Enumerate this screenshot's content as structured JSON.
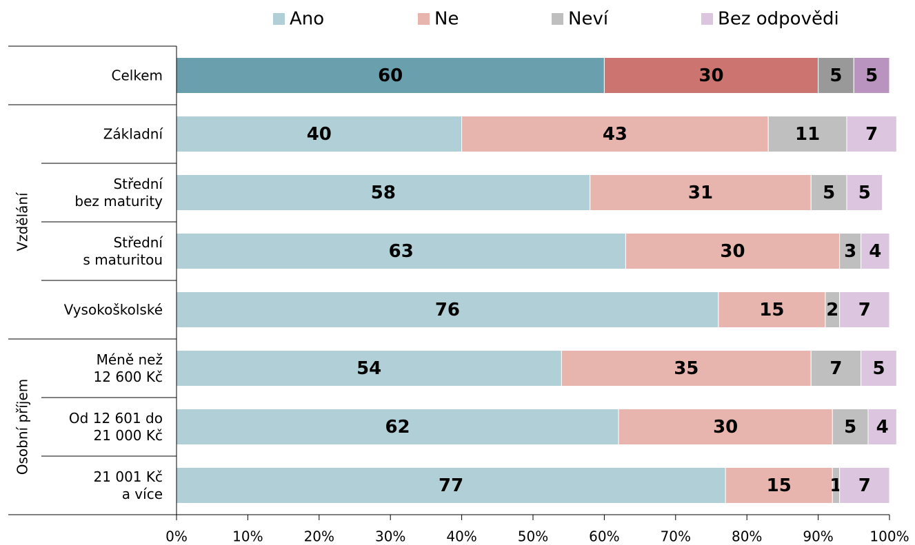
{
  "chart_data": {
    "type": "stacked_barh",
    "categories": [
      "Celkem",
      "Základní",
      "Střední\nbez maturity",
      "Střední\ns maturitou",
      "Vysokoškolské",
      "Méně než\n12 600 Kč",
      "Od 12 601 do\n21 000 Kč",
      "21 001 Kč\na více"
    ],
    "groups": [
      {
        "label": "Vzdělání",
        "start": 1,
        "end": 4
      },
      {
        "label": "Osobní příjem",
        "start": 5,
        "end": 7
      }
    ],
    "series": [
      {
        "name": "Ano",
        "color": "#b0cfd6",
        "colors": [
          "#6a9fad",
          "#b0cfd6",
          "#b0cfd6",
          "#b0cfd6",
          "#b0cfd6",
          "#b0cfd6",
          "#b0cfd6",
          "#b0cfd6"
        ],
        "values": [
          60,
          40,
          58,
          63,
          76,
          54,
          62,
          77
        ]
      },
      {
        "name": "Ne",
        "color": "#e8b5ae",
        "colors": [
          "#cc7470",
          "#e8b5ae",
          "#e8b5ae",
          "#e8b5ae",
          "#e8b5ae",
          "#e8b5ae",
          "#e8b5ae",
          "#e8b5ae"
        ],
        "values": [
          30,
          43,
          31,
          30,
          15,
          35,
          30,
          15
        ]
      },
      {
        "name": "Neví",
        "color": "#bfbfbf",
        "colors": [
          "#999999",
          "#bfbfbf",
          "#bfbfbf",
          "#bfbfbf",
          "#bfbfbf",
          "#bfbfbf",
          "#bfbfbf",
          "#bfbfbf"
        ],
        "values": [
          5,
          11,
          5,
          3,
          2,
          7,
          5,
          1
        ]
      },
      {
        "name": "Bez odpovědi",
        "color": "#dcc5df",
        "colors": [
          "#b894bf",
          "#dcc5df",
          "#dcc5df",
          "#dcc5df",
          "#dcc5df",
          "#dcc5df",
          "#dcc5df",
          "#dcc5df"
        ],
        "values": [
          5,
          7,
          5,
          4,
          7,
          5,
          4,
          7
        ]
      }
    ],
    "xlim": [
      0,
      100
    ],
    "xticks": [
      {
        "value": 0,
        "label": "0%"
      },
      {
        "value": 10,
        "label": "10%"
      },
      {
        "value": 20,
        "label": "20%"
      },
      {
        "value": 30,
        "label": "30%"
      },
      {
        "value": 40,
        "label": "40%"
      },
      {
        "value": 50,
        "label": "50%"
      },
      {
        "value": 60,
        "label": "60%"
      },
      {
        "value": 70,
        "label": "70%"
      },
      {
        "value": 80,
        "label": "80%"
      },
      {
        "value": 90,
        "label": "90%"
      },
      {
        "value": 100,
        "label": "100%"
      }
    ],
    "legend": "top"
  }
}
